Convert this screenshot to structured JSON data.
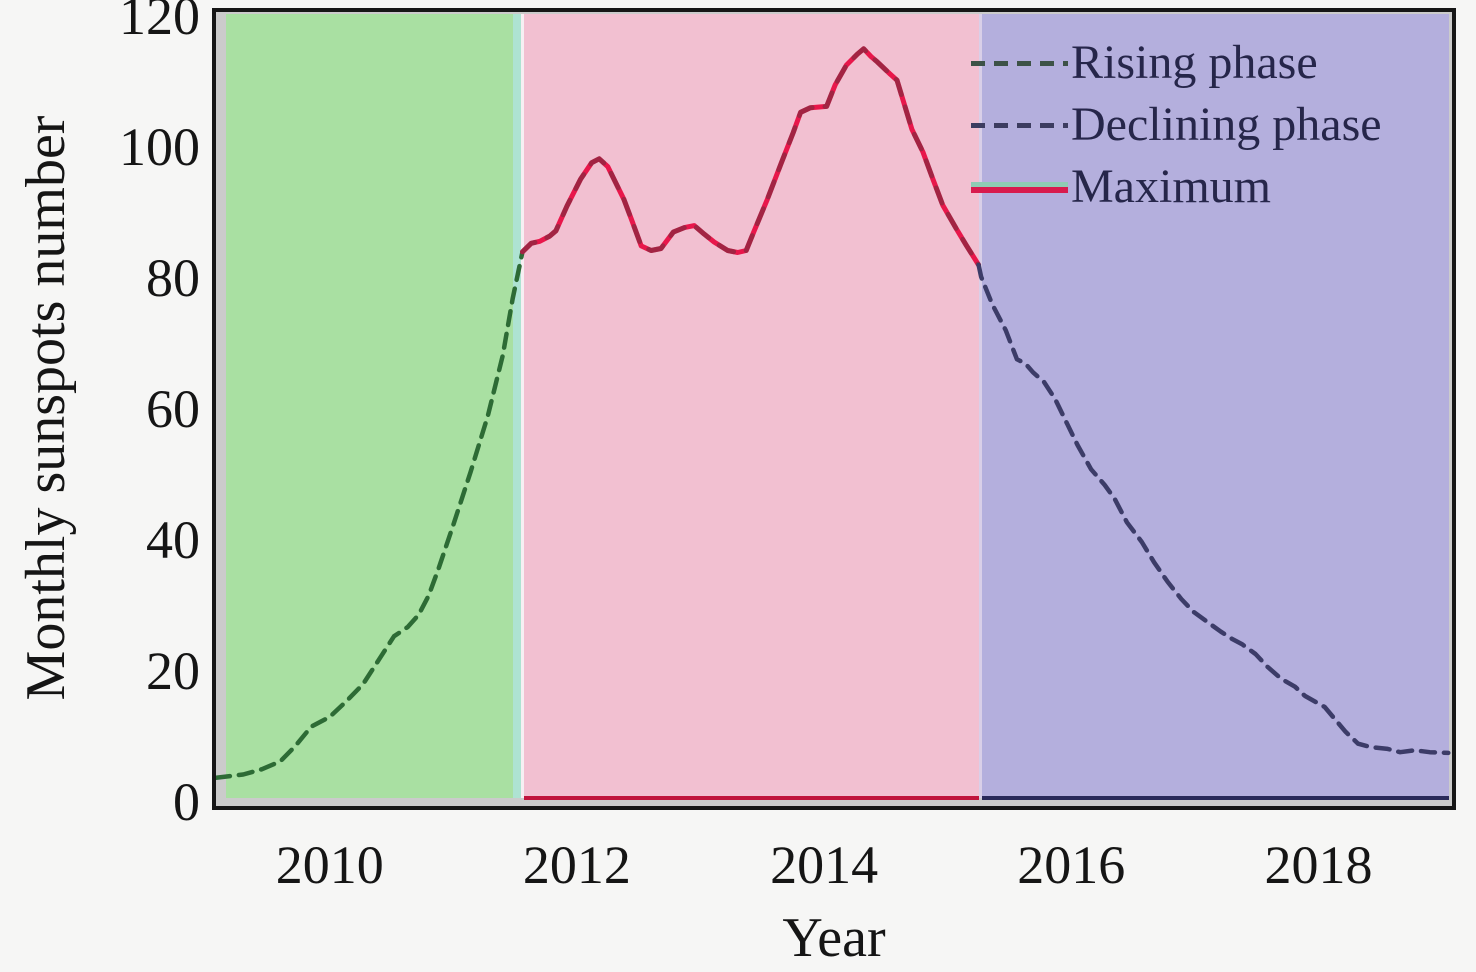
{
  "figure": {
    "y_axis_label": "Monthly sunspots number",
    "x_axis_label": "Year"
  },
  "legend": {
    "position": "upper right",
    "items": [
      {
        "label": "Rising phase",
        "swatch": "dashed",
        "color": "#3d5247"
      },
      {
        "label": "Declining phase",
        "swatch": "dashed",
        "color": "#3c3c60"
      },
      {
        "label": "Maximum",
        "swatch": "solid-double",
        "color": "#d81b4e",
        "color2": "#8fccb4"
      }
    ]
  },
  "colors": {
    "page_background": "#f6f6f5",
    "plot_frame": "#161616",
    "plot_margin_gray": "#cbcbcb",
    "rising_region": "#a9e0a2",
    "maximum_region": "#f2c0d1",
    "declining_region": "#b4afdd",
    "teal_boundary_strip": "#aee3d2",
    "white_boundary_line": "#f7eff3",
    "lavender_boundary_line": "#d9cfe8",
    "rising_line": "#2d6b35",
    "maximum_line": "#e8174b",
    "declining_line": "#3c3c68"
  },
  "chart_data": {
    "type": "line",
    "title": "",
    "xlabel": "Year",
    "ylabel": "Monthly sunspots number",
    "xlim": [
      2009.08,
      2019.08
    ],
    "ylim": [
      0,
      120
    ],
    "xticks": [
      2010,
      2012,
      2014,
      2016,
      2018
    ],
    "yticks": [
      0,
      20,
      40,
      60,
      80,
      100,
      120
    ],
    "grid": false,
    "legend_position": "upper right",
    "regions": [
      {
        "name": "rising-phase-region",
        "from": 2009.08,
        "to": 2011.48,
        "color": "#a9e0a2"
      },
      {
        "name": "boundary-teal-strip",
        "from": 2011.48,
        "to": 2011.545,
        "color": "#aee3d2"
      },
      {
        "name": "boundary-white-line",
        "from": 2011.545,
        "to": 2011.57,
        "color": "#f7eff3"
      },
      {
        "name": "maximum-phase-region",
        "from": 2011.57,
        "to": 2015.25,
        "color": "#f2c0d1"
      },
      {
        "name": "boundary-lavender-line",
        "from": 2015.25,
        "to": 2015.28,
        "color": "#d9cfe8"
      },
      {
        "name": "declining-phase-region",
        "from": 2015.28,
        "to": 2019.08,
        "color": "#b4afdd"
      }
    ],
    "baselines": [
      {
        "name": "maximum-baseline",
        "from": 2011.57,
        "to": 2015.25,
        "color": "#c0143c"
      },
      {
        "name": "declining-baseline",
        "from": 2015.28,
        "to": 2019.08,
        "color": "#2a2a5a"
      }
    ],
    "series": [
      {
        "name": "Rising phase",
        "style": "dashed",
        "color": "#2d6b35",
        "width": 4.5,
        "dash": "14 9",
        "points": [
          [
            2009.08,
            3.7
          ],
          [
            2009.3,
            4.2
          ],
          [
            2009.45,
            5.0
          ],
          [
            2009.6,
            6.2
          ],
          [
            2009.72,
            8.5
          ],
          [
            2009.85,
            11.5
          ],
          [
            2010.0,
            13.0
          ],
          [
            2010.13,
            15.3
          ],
          [
            2010.27,
            18.0
          ],
          [
            2010.4,
            21.8
          ],
          [
            2010.52,
            25.3
          ],
          [
            2010.63,
            26.7
          ],
          [
            2010.72,
            28.6
          ],
          [
            2010.8,
            31.5
          ],
          [
            2010.88,
            35.6
          ],
          [
            2011.0,
            42.3
          ],
          [
            2011.14,
            50.4
          ],
          [
            2011.28,
            59.0
          ],
          [
            2011.4,
            68.2
          ],
          [
            2011.48,
            76.8
          ],
          [
            2011.56,
            84.0
          ]
        ]
      },
      {
        "name": "Maximum",
        "style": "solid",
        "color": "#e8174b",
        "width": 5,
        "overlay_color": "rgba(104,48,62,0.55)",
        "overlay_dash": "16 13",
        "points": [
          [
            2011.56,
            84.0
          ],
          [
            2011.63,
            85.3
          ],
          [
            2011.7,
            85.6
          ],
          [
            2011.78,
            86.4
          ],
          [
            2011.83,
            87.2
          ],
          [
            2011.92,
            91.0
          ],
          [
            2012.03,
            95.1
          ],
          [
            2012.12,
            97.6
          ],
          [
            2012.18,
            98.2
          ],
          [
            2012.25,
            97.0
          ],
          [
            2012.38,
            92.0
          ],
          [
            2012.44,
            89.0
          ],
          [
            2012.52,
            84.9
          ],
          [
            2012.6,
            84.2
          ],
          [
            2012.68,
            84.5
          ],
          [
            2012.78,
            87.0
          ],
          [
            2012.87,
            87.7
          ],
          [
            2012.95,
            88.0
          ],
          [
            2013.03,
            86.7
          ],
          [
            2013.11,
            85.5
          ],
          [
            2013.22,
            84.2
          ],
          [
            2013.3,
            83.9
          ],
          [
            2013.37,
            84.2
          ],
          [
            2013.43,
            87.0
          ],
          [
            2013.54,
            92.0
          ],
          [
            2013.65,
            97.4
          ],
          [
            2013.75,
            102.2
          ],
          [
            2013.81,
            105.3
          ],
          [
            2013.89,
            106.0
          ],
          [
            2014.02,
            106.2
          ],
          [
            2014.09,
            109.5
          ],
          [
            2014.18,
            112.5
          ],
          [
            2014.27,
            114.2
          ],
          [
            2014.32,
            115.0
          ],
          [
            2014.38,
            113.8
          ],
          [
            2014.43,
            113.0
          ],
          [
            2014.53,
            111.2
          ],
          [
            2014.59,
            110.2
          ],
          [
            2014.71,
            102.7
          ],
          [
            2014.8,
            99.2
          ],
          [
            2014.88,
            95.1
          ],
          [
            2014.96,
            91.1
          ],
          [
            2015.07,
            87.5
          ],
          [
            2015.15,
            85.0
          ],
          [
            2015.25,
            82.0
          ]
        ]
      },
      {
        "name": "Declining phase",
        "style": "dashed",
        "color": "#3c3c68",
        "width": 4.5,
        "dash": "14 9",
        "points": [
          [
            2015.25,
            82.0
          ],
          [
            2015.27,
            80.2
          ],
          [
            2015.36,
            76.0
          ],
          [
            2015.47,
            72.0
          ],
          [
            2015.56,
            67.6
          ],
          [
            2015.63,
            66.9
          ],
          [
            2015.69,
            65.6
          ],
          [
            2015.78,
            64.1
          ],
          [
            2015.87,
            61.5
          ],
          [
            2015.97,
            57.6
          ],
          [
            2016.05,
            54.5
          ],
          [
            2016.16,
            50.8
          ],
          [
            2016.27,
            48.4
          ],
          [
            2016.35,
            46.3
          ],
          [
            2016.45,
            42.7
          ],
          [
            2016.57,
            39.7
          ],
          [
            2016.67,
            36.6
          ],
          [
            2016.78,
            33.6
          ],
          [
            2016.89,
            31.0
          ],
          [
            2016.99,
            29.0
          ],
          [
            2017.1,
            27.5
          ],
          [
            2017.21,
            26.0
          ],
          [
            2017.3,
            24.9
          ],
          [
            2017.38,
            24.1
          ],
          [
            2017.49,
            22.6
          ],
          [
            2017.59,
            20.6
          ],
          [
            2017.7,
            18.8
          ],
          [
            2017.81,
            17.6
          ],
          [
            2017.89,
            16.2
          ],
          [
            2018.05,
            14.5
          ],
          [
            2018.13,
            12.7
          ],
          [
            2018.22,
            10.7
          ],
          [
            2018.32,
            8.9
          ],
          [
            2018.42,
            8.4
          ],
          [
            2018.56,
            8.1
          ],
          [
            2018.66,
            7.6
          ],
          [
            2018.78,
            7.9
          ],
          [
            2018.9,
            7.6
          ],
          [
            2019.05,
            7.5
          ]
        ]
      }
    ]
  }
}
